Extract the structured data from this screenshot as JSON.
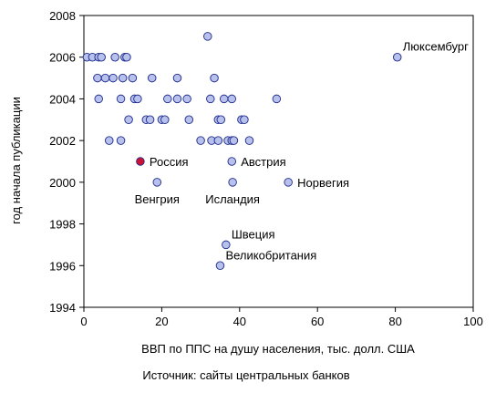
{
  "chart_data": {
    "type": "scatter",
    "xlabel": "ВВП по ППС на душу населения, тыс. долл. США",
    "ylabel": "год начала публикации",
    "source": "Источник: сайты центральных банков",
    "xlim": [
      0,
      100
    ],
    "ylim": [
      1994,
      2008
    ],
    "x_ticks": [
      "0",
      "20",
      "40",
      "60",
      "80",
      "100"
    ],
    "y_ticks": [
      "1994",
      "1996",
      "1998",
      "2000",
      "2002",
      "2004",
      "2006",
      "2008"
    ],
    "grid": false,
    "colors": {
      "point": "#b8c0ec",
      "highlight": "#cc1133",
      "outline": "#1c2a8c"
    },
    "points": [
      {
        "x": 0.8,
        "y": 2006
      },
      {
        "x": 2.2,
        "y": 2006
      },
      {
        "x": 3.8,
        "y": 2006
      },
      {
        "x": 4.5,
        "y": 2006
      },
      {
        "x": 8,
        "y": 2006
      },
      {
        "x": 10.5,
        "y": 2006
      },
      {
        "x": 11,
        "y": 2006
      },
      {
        "x": 3.5,
        "y": 2005
      },
      {
        "x": 5.5,
        "y": 2005
      },
      {
        "x": 7.5,
        "y": 2005
      },
      {
        "x": 10,
        "y": 2005
      },
      {
        "x": 12.5,
        "y": 2005
      },
      {
        "x": 17.5,
        "y": 2005
      },
      {
        "x": 24,
        "y": 2005
      },
      {
        "x": 33.5,
        "y": 2005
      },
      {
        "x": 3.8,
        "y": 2004
      },
      {
        "x": 9.5,
        "y": 2004
      },
      {
        "x": 13,
        "y": 2004
      },
      {
        "x": 13.8,
        "y": 2004
      },
      {
        "x": 21.5,
        "y": 2004
      },
      {
        "x": 24,
        "y": 2004
      },
      {
        "x": 26.5,
        "y": 2004
      },
      {
        "x": 32.5,
        "y": 2004
      },
      {
        "x": 36,
        "y": 2004
      },
      {
        "x": 38,
        "y": 2004
      },
      {
        "x": 49.5,
        "y": 2004
      },
      {
        "x": 11.5,
        "y": 2003
      },
      {
        "x": 16,
        "y": 2003
      },
      {
        "x": 17,
        "y": 2003
      },
      {
        "x": 20,
        "y": 2003
      },
      {
        "x": 20.8,
        "y": 2003
      },
      {
        "x": 27,
        "y": 2003
      },
      {
        "x": 34.5,
        "y": 2003
      },
      {
        "x": 35.2,
        "y": 2003
      },
      {
        "x": 40.5,
        "y": 2003
      },
      {
        "x": 41.2,
        "y": 2003
      },
      {
        "x": 6.5,
        "y": 2002
      },
      {
        "x": 9.5,
        "y": 2002
      },
      {
        "x": 30,
        "y": 2002
      },
      {
        "x": 32.8,
        "y": 2002
      },
      {
        "x": 34.5,
        "y": 2002
      },
      {
        "x": 37,
        "y": 2002
      },
      {
        "x": 38,
        "y": 2002
      },
      {
        "x": 38.5,
        "y": 2002
      },
      {
        "x": 42.5,
        "y": 2002
      },
      {
        "x": 31.8,
        "y": 2007
      },
      {
        "x": 80.5,
        "y": 2006
      },
      {
        "x": 14.5,
        "y": 2001,
        "highlight": true
      },
      {
        "x": 38,
        "y": 2001
      },
      {
        "x": 18.8,
        "y": 2000
      },
      {
        "x": 38.2,
        "y": 2000
      },
      {
        "x": 52.5,
        "y": 2000
      },
      {
        "x": 36.5,
        "y": 1997
      },
      {
        "x": 35,
        "y": 1996
      }
    ],
    "annotations": [
      {
        "text": "Люксембург",
        "x": 80.5,
        "y": 2006,
        "pos": "above-right"
      },
      {
        "text": "Россия",
        "x": 14.5,
        "y": 2001,
        "pos": "right"
      },
      {
        "text": "Австрия",
        "x": 38,
        "y": 2001,
        "pos": "right"
      },
      {
        "text": "Венгрия",
        "x": 18.8,
        "y": 2000,
        "pos": "below"
      },
      {
        "text": "Исландия",
        "x": 38.2,
        "y": 2000,
        "pos": "below"
      },
      {
        "text": "Норвегия",
        "x": 52.5,
        "y": 2000,
        "pos": "right"
      },
      {
        "text": "Швеция",
        "x": 36.5,
        "y": 1997,
        "pos": "above-right"
      },
      {
        "text": "Великобритания",
        "x": 35,
        "y": 1996,
        "pos": "above-right"
      }
    ]
  }
}
